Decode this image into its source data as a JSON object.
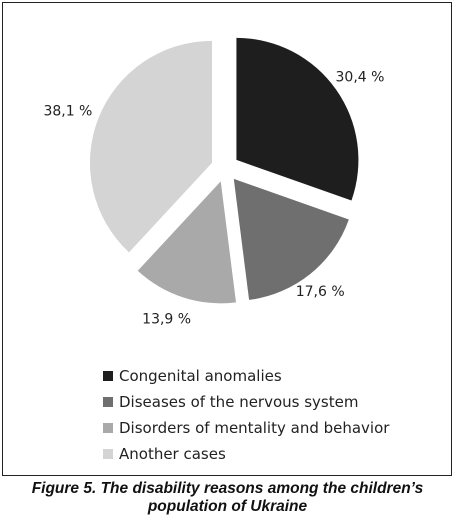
{
  "chart_data": {
    "type": "pie",
    "categories": [
      "Congenital anomalies",
      "Diseases of the nervous system",
      "Disorders of mentality and behavior",
      "Another cases"
    ],
    "values": [
      30.4,
      17.6,
      13.9,
      38.1
    ],
    "value_labels": [
      "30,4 %",
      "17,6 %",
      "13,9 %",
      "38,1 %"
    ],
    "colors": [
      "#1e1e1e",
      "#6f6f6f",
      "#a9a9a9",
      "#d4d4d4"
    ],
    "exploded": true,
    "start": "12 o'clock, clockwise",
    "legend_position": "bottom"
  },
  "caption": {
    "line1": "Figure 5. The disability reasons among the children’s",
    "line2": "population of Ukraine"
  }
}
